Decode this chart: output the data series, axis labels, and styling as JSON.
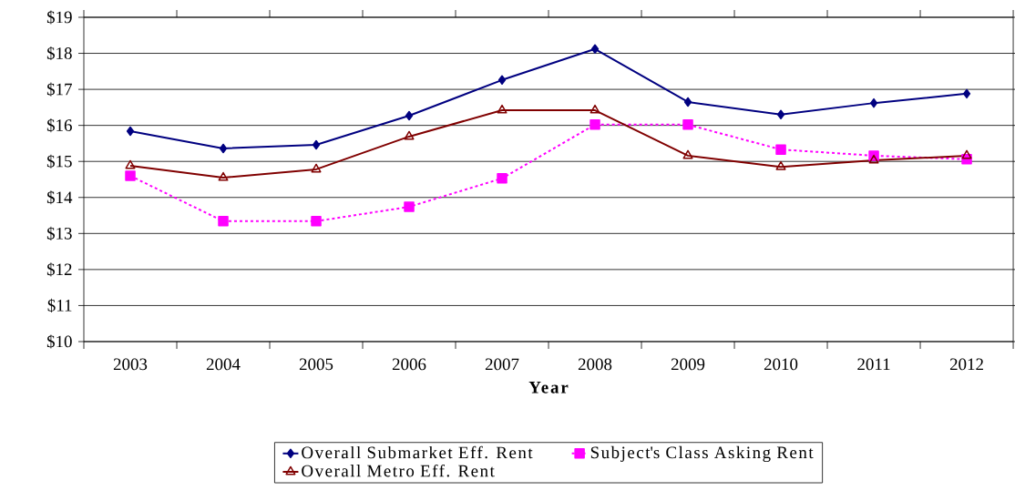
{
  "chart_data": {
    "type": "line",
    "xlabel": "Year",
    "categories": [
      "2003",
      "2004",
      "2005",
      "2006",
      "2007",
      "2008",
      "2009",
      "2010",
      "2011",
      "2012"
    ],
    "series": [
      {
        "name": "Overall Submarket Eff. Rent",
        "color": "#000080",
        "marker": "diamond",
        "line_style": "solid",
        "values": [
          15.84,
          15.36,
          15.46,
          16.27,
          17.26,
          18.12,
          16.65,
          16.3,
          16.62,
          16.88
        ]
      },
      {
        "name": "Subject's Class Asking Rent",
        "color": "#ff00ff",
        "marker": "square",
        "line_style": "dashed",
        "values": [
          14.6,
          13.34,
          13.34,
          13.74,
          14.53,
          16.02,
          16.02,
          15.33,
          15.16,
          15.06
        ]
      },
      {
        "name": "Overall Metro Eff. Rent",
        "color": "#800000",
        "marker": "triangle",
        "line_style": "solid",
        "values": [
          14.88,
          14.55,
          14.78,
          15.69,
          16.42,
          16.42,
          15.16,
          14.85,
          15.03,
          15.16
        ]
      }
    ],
    "ylim": [
      10,
      19
    ],
    "yticks": [
      {
        "value": 10,
        "label": "$10"
      },
      {
        "value": 11,
        "label": "$11"
      },
      {
        "value": 12,
        "label": "$12"
      },
      {
        "value": 13,
        "label": "$13"
      },
      {
        "value": 14,
        "label": "$14"
      },
      {
        "value": 15,
        "label": "$15"
      },
      {
        "value": 16,
        "label": "$16"
      },
      {
        "value": 17,
        "label": "$17"
      },
      {
        "value": 18,
        "label": "$18"
      },
      {
        "value": 19,
        "label": "$19"
      }
    ],
    "grid": "y",
    "legend": "bottom"
  }
}
